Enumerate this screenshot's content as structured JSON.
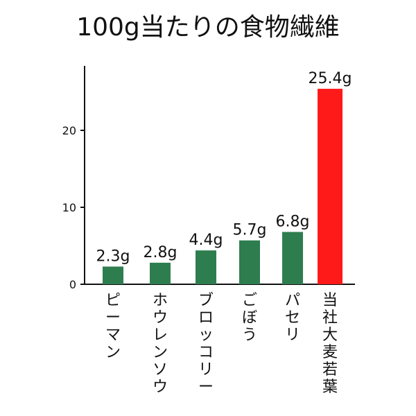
{
  "chart_data": {
    "type": "bar",
    "title": "100g当たりの食物繊維",
    "categories": [
      "ピーマン",
      "ホウレンソウ",
      "ブロッコリー",
      "ごぼう",
      "パセリ",
      "当社大麦若葉"
    ],
    "values": [
      2.3,
      2.8,
      4.4,
      5.7,
      6.8,
      25.4
    ],
    "data_labels": [
      "2.3g",
      "2.8g",
      "4.4g",
      "5.7g",
      "6.8g",
      "25.4g"
    ],
    "yticks": [
      0,
      10,
      20
    ],
    "ylim": [
      0,
      27
    ],
    "grid": false,
    "legend": "none"
  },
  "colors": {
    "bar_default": "#2e7d4f",
    "bar_highlight": "#ff1a1a",
    "axis": "#111111",
    "text": "#111111"
  }
}
